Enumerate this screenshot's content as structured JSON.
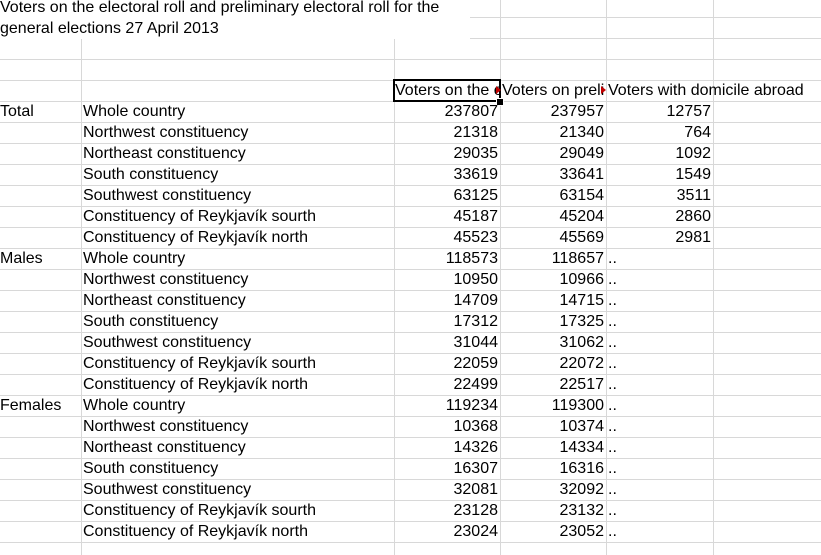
{
  "title": "Voters on the electoral roll and preliminary electoral roll for the general elections 27 April 2013",
  "headers": {
    "col_c": "Voters on the electoral roll",
    "col_d": "Voters on preliminary electoral roll",
    "col_e": "Voters with domicile abroad"
  },
  "rows": [
    {
      "group": "Total",
      "region": "Whole country",
      "c": "237807",
      "d": "237957",
      "e": "12757"
    },
    {
      "group": "",
      "region": "Northwest constituency",
      "c": "21318",
      "d": "21340",
      "e": "764"
    },
    {
      "group": "",
      "region": "Northeast constituency",
      "c": "29035",
      "d": "29049",
      "e": "1092"
    },
    {
      "group": "",
      "region": "South constituency",
      "c": "33619",
      "d": "33641",
      "e": "1549"
    },
    {
      "group": "",
      "region": "Southwest constituency",
      "c": "63125",
      "d": "63154",
      "e": "3511"
    },
    {
      "group": "",
      "region": "Constituency of Reykjavík sourth",
      "c": "45187",
      "d": "45204",
      "e": "2860"
    },
    {
      "group": "",
      "region": "Constituency of Reykjavík north",
      "c": "45523",
      "d": "45569",
      "e": "2981"
    },
    {
      "group": "Males",
      "region": "Whole country",
      "c": "118573",
      "d": "118657",
      "e": ".."
    },
    {
      "group": "",
      "region": "Northwest constituency",
      "c": "10950",
      "d": "10966",
      "e": ".."
    },
    {
      "group": "",
      "region": "Northeast constituency",
      "c": "14709",
      "d": "14715",
      "e": ".."
    },
    {
      "group": "",
      "region": "South constituency",
      "c": "17312",
      "d": "17325",
      "e": ".."
    },
    {
      "group": "",
      "region": "Southwest constituency",
      "c": "31044",
      "d": "31062",
      "e": ".."
    },
    {
      "group": "",
      "region": "Constituency of Reykjavík sourth",
      "c": "22059",
      "d": "22072",
      "e": ".."
    },
    {
      "group": "",
      "region": "Constituency of Reykjavík north",
      "c": "22499",
      "d": "22517",
      "e": ".."
    },
    {
      "group": "Females",
      "region": "Whole country",
      "c": "119234",
      "d": "119300",
      "e": ".."
    },
    {
      "group": "",
      "region": "Northwest constituency",
      "c": "10368",
      "d": "10374",
      "e": ".."
    },
    {
      "group": "",
      "region": "Northeast constituency",
      "c": "14326",
      "d": "14334",
      "e": ".."
    },
    {
      "group": "",
      "region": "South constituency",
      "c": "16307",
      "d": "16316",
      "e": ".."
    },
    {
      "group": "",
      "region": "Southwest constituency",
      "c": "32081",
      "d": "32092",
      "e": ".."
    },
    {
      "group": "",
      "region": "Constituency of Reykjavík sourth",
      "c": "23128",
      "d": "23132",
      "e": ".."
    },
    {
      "group": "",
      "region": "Constituency of Reykjavík north",
      "c": "23024",
      "d": "23052",
      "e": ".."
    }
  ],
  "colors": {
    "gridline": "#d8d8d8",
    "overflow_marker": "#c00000",
    "selection": "#000000"
  }
}
